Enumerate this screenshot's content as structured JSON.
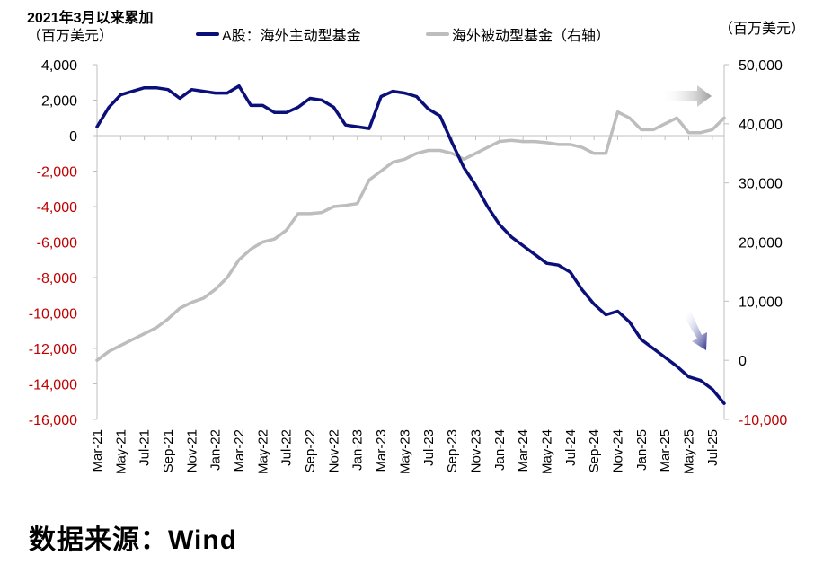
{
  "header": {
    "left_title": "2021年3月以来累加",
    "left_unit": "（百万美元）",
    "right_unit": "（百万美元）"
  },
  "legend": [
    {
      "label": "A股：海外主动型基金",
      "color": "#0a0f7a"
    },
    {
      "label": "海外被动型基金（右轴）",
      "color": "#bdbdbd"
    }
  ],
  "footer": {
    "source": "数据来源：Wind"
  },
  "colors": {
    "negative_tick": "#c00000",
    "positive_tick": "#000000",
    "axis": "#bfbfbf"
  },
  "chart_data": {
    "type": "line",
    "title": "2021年3月以来累加",
    "xlabel": "",
    "ylabel": "（百万美元）",
    "y2label": "（百万美元）",
    "ylim": [
      -16000,
      4000
    ],
    "y2lim": [
      -10000,
      50000
    ],
    "yticks": [
      4000,
      2000,
      0,
      -2000,
      -4000,
      -6000,
      -8000,
      -10000,
      -12000,
      -14000,
      -16000
    ],
    "ytick_labels": [
      "4,000",
      "2,000",
      "0",
      "-2,000",
      "-4,000",
      "-6,000",
      "-8,000",
      "-10,000",
      "-12,000",
      "-14,000",
      "-16,000"
    ],
    "y2ticks": [
      50000,
      40000,
      30000,
      20000,
      10000,
      0,
      -10000
    ],
    "y2tick_labels": [
      "50,000",
      "40,000",
      "30,000",
      "20,000",
      "10,000",
      "0",
      "-10,000"
    ],
    "xtick_labels": [
      "Mar-21",
      "May-21",
      "Jul-21",
      "Sep-21",
      "Nov-21",
      "Jan-22",
      "Mar-22",
      "May-22",
      "Jul-22",
      "Sep-22",
      "Nov-22",
      "Jan-23",
      "Mar-23",
      "May-23",
      "Jul-23",
      "Sep-23",
      "Nov-23",
      "Jan-24",
      "Mar-24",
      "May-24",
      "Jul-24",
      "Sep-24",
      "Nov-24",
      "Jan-25",
      "Mar-25",
      "May-25",
      "Jul-25"
    ],
    "grid": false,
    "legend_position": "top",
    "x": [
      "Mar-21",
      "Apr-21",
      "May-21",
      "Jun-21",
      "Jul-21",
      "Aug-21",
      "Sep-21",
      "Oct-21",
      "Nov-21",
      "Dec-21",
      "Jan-22",
      "Feb-22",
      "Mar-22",
      "Apr-22",
      "May-22",
      "Jun-22",
      "Jul-22",
      "Aug-22",
      "Sep-22",
      "Oct-22",
      "Nov-22",
      "Dec-22",
      "Jan-23",
      "Feb-23",
      "Mar-23",
      "Apr-23",
      "May-23",
      "Jun-23",
      "Jul-23",
      "Aug-23",
      "Sep-23",
      "Oct-23",
      "Nov-23",
      "Dec-23",
      "Jan-24",
      "Feb-24",
      "Mar-24",
      "Apr-24",
      "May-24",
      "Jun-24",
      "Jul-24",
      "Aug-24",
      "Sep-24",
      "Oct-24",
      "Nov-24",
      "Dec-24",
      "Jan-25",
      "Feb-25",
      "Mar-25",
      "Apr-25",
      "May-25",
      "Jun-25",
      "Jul-25",
      "Aug-25"
    ],
    "series": [
      {
        "name": "A股：海外主动型基金",
        "axis": "left",
        "color": "#0a0f7a",
        "values": [
          500,
          1600,
          2300,
          2500,
          2700,
          2700,
          2600,
          2100,
          2600,
          2500,
          2400,
          2400,
          2800,
          1700,
          1700,
          1300,
          1300,
          1600,
          2100,
          2000,
          1600,
          600,
          500,
          400,
          2200,
          2500,
          2400,
          2200,
          1500,
          1100,
          -400,
          -1800,
          -2800,
          -4000,
          -5000,
          -5700,
          -6200,
          -6700,
          -7200,
          -7300,
          -7700,
          -8700,
          -9500,
          -10100,
          -9900,
          -10500,
          -11500,
          -12000,
          -12500,
          -13000,
          -13600,
          -13800,
          -14300,
          -15100
        ]
      },
      {
        "name": "海外被动型基金（右轴）",
        "axis": "right",
        "color": "#bdbdbd",
        "values": [
          0,
          1500,
          2500,
          3500,
          4500,
          5500,
          7000,
          8800,
          9800,
          10500,
          12000,
          14000,
          17000,
          18800,
          20000,
          20500,
          22000,
          24800,
          24800,
          25000,
          26000,
          26200,
          26500,
          30500,
          32000,
          33500,
          34000,
          35000,
          35500,
          35500,
          35000,
          34000,
          35000,
          36000,
          37000,
          37200,
          37000,
          37000,
          36800,
          36500,
          36500,
          36000,
          35000,
          35000,
          42000,
          41000,
          39000,
          39000,
          40000,
          41000,
          38500,
          38500,
          39000,
          41000
        ]
      }
    ],
    "annotations": [
      {
        "type": "arrow",
        "near_series": "海外被动型基金（右轴）",
        "direction": "right"
      },
      {
        "type": "arrow",
        "near_series": "A股：海外主动型基金",
        "direction": "down-right"
      }
    ]
  }
}
